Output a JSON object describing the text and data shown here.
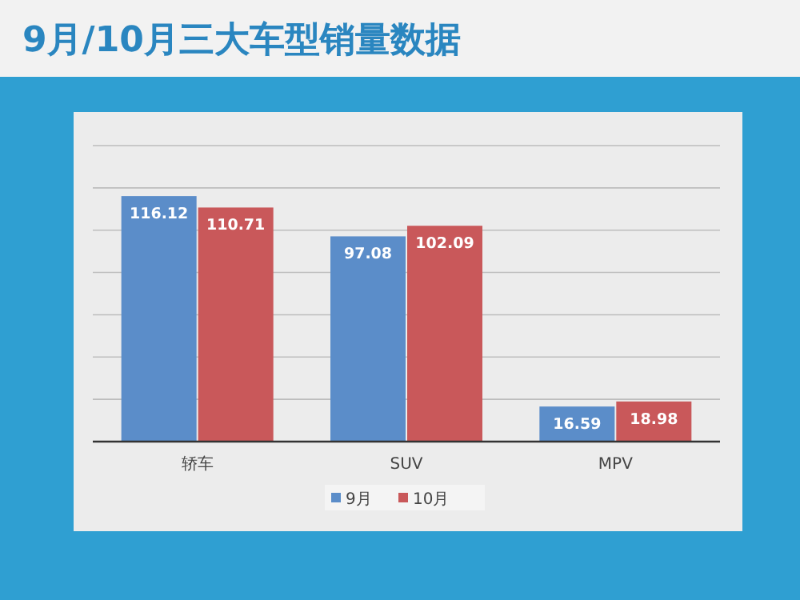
{
  "chart_data": {
    "type": "bar",
    "title": "9月/10月三大车型销量数据",
    "categories": [
      "轿车",
      "SUV",
      "MPV"
    ],
    "series": [
      {
        "name": "9月",
        "color": "#5b8dc9",
        "values": [
          116.12,
          97.08,
          16.59
        ]
      },
      {
        "name": "10月",
        "color": "#c9585a",
        "values": [
          110.71,
          102.09,
          18.98
        ]
      }
    ],
    "ylim": [
      0,
      140
    ],
    "yticks": [
      {
        "value": 0,
        "label": null
      },
      {
        "value": 20,
        "label": null
      },
      {
        "value": 40,
        "label": null
      },
      {
        "value": 60,
        "label": null
      },
      {
        "value": 80,
        "label": null
      },
      {
        "value": 100,
        "label": null
      },
      {
        "value": 120,
        "label": null
      },
      {
        "value": 140,
        "label": null
      }
    ],
    "tick_labels": "x",
    "grid": "y",
    "legend": "bottom",
    "data_labels": true
  }
}
